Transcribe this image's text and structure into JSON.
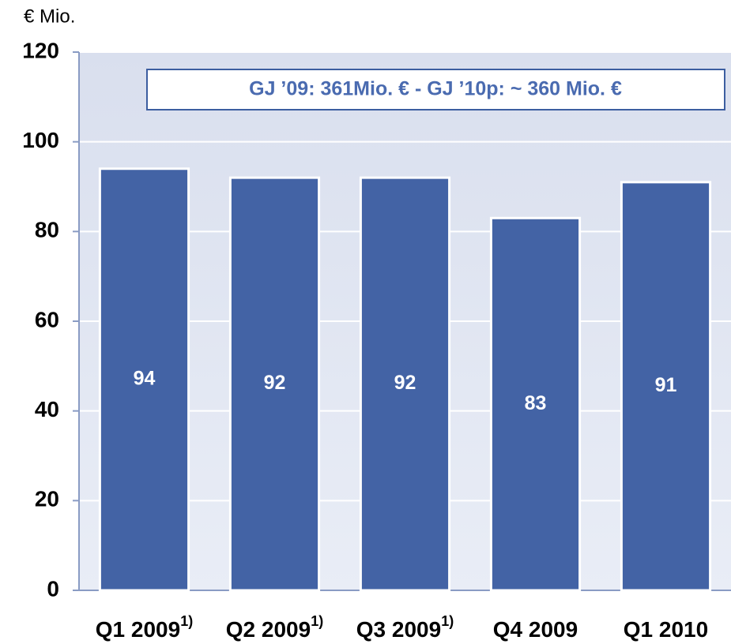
{
  "chart_data": {
    "type": "bar",
    "y_axis_label": "€ Mio.",
    "annotation": "GJ ’09: 361Mio. € - GJ ’10p: ~ 360 Mio. €",
    "categories": [
      "Q1 2009",
      "Q2 2009",
      "Q3 2009",
      "Q4 2009",
      "Q1 2010"
    ],
    "category_notes": [
      "1)",
      "1)",
      "1)",
      null,
      null
    ],
    "values": [
      94,
      92,
      92,
      83,
      91
    ],
    "color": "#4363a5",
    "ylim": [
      0,
      120
    ],
    "yticks": [
      0,
      20,
      40,
      60,
      80,
      100,
      120
    ],
    "grid": true
  }
}
